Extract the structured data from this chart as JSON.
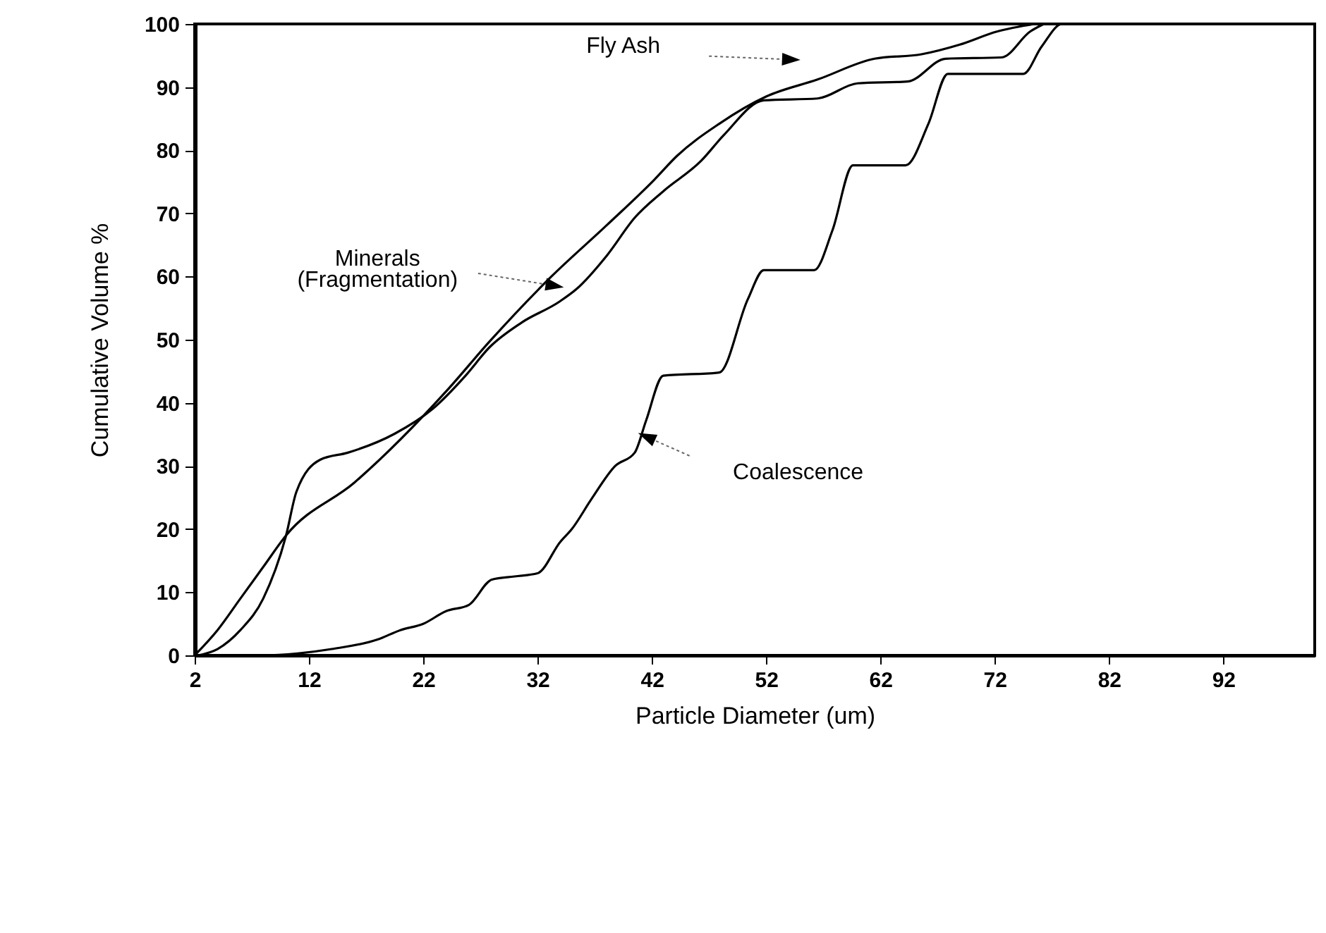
{
  "chart_data": {
    "type": "line",
    "xlabel": "Particle Diameter (um)",
    "ylabel": "Cumulative Volume %",
    "xlim": [
      2,
      100
    ],
    "xticks": [
      2,
      12,
      22,
      32,
      42,
      52,
      62,
      72,
      82,
      92
    ],
    "ylim": [
      0,
      100
    ],
    "yticks": [
      0,
      10,
      20,
      30,
      40,
      50,
      60,
      70,
      80,
      90,
      100
    ],
    "annotations": [
      "Fly Ash",
      "Minerals (Fragmentation)",
      "Coalescence"
    ],
    "grid": false,
    "marker": "none",
    "line_style": "solid",
    "series": [
      {
        "color": "#000000",
        "x": [
          2,
          4,
          6,
          8,
          10,
          16,
          24.1,
          27.8,
          33.1,
          38.1,
          42.2,
          44.2,
          47.9,
          52,
          56.5,
          61.5,
          65.6,
          68.9,
          72.2,
          75.5
        ],
        "values": [
          0,
          4,
          9,
          14,
          19,
          27.4,
          42,
          49.7,
          59.8,
          68.2,
          75.3,
          79.1,
          84.2,
          88.5,
          91.2,
          94.5,
          95.2,
          96.7,
          98.8,
          100
        ]
      },
      {
        "color": "#000000",
        "x": [
          2.3,
          4,
          6,
          8,
          10,
          10.9,
          13,
          15.4,
          19.5,
          22.8,
          25.7,
          27.8,
          30.6,
          33.9,
          35.4,
          38.1,
          40.5,
          43,
          46.3,
          48.3,
          51.8,
          56.5,
          60,
          64.4,
          67.7,
          72.6,
          75.1,
          76.3
        ],
        "values": [
          0,
          1,
          4,
          9,
          19,
          25.9,
          31,
          32.1,
          35.1,
          39,
          44.3,
          48.8,
          52.7,
          56,
          58,
          63.4,
          69.3,
          73.5,
          78.3,
          82.4,
          87.9,
          88.2,
          90.6,
          90.9,
          94.5,
          94.7,
          98.8,
          100
        ]
      },
      {
        "color": "#000000",
        "x": [
          2,
          8,
          11,
          14,
          18,
          20,
          22,
          24,
          26,
          28,
          30,
          32,
          34,
          35,
          36.7,
          38.8,
          40.5,
          41.5,
          43,
          47.9,
          50.4,
          51.8,
          56.2,
          57.8,
          59.6,
          64.2,
          66.2,
          67.9,
          74.5,
          76.1,
          77.9,
          100
        ],
        "values": [
          0,
          0,
          0.3,
          1,
          2.5,
          4,
          5,
          7,
          8,
          12,
          12.5,
          13,
          18,
          20,
          24.7,
          30,
          32.1,
          37.2,
          44.3,
          44.8,
          56.4,
          61,
          61,
          67.3,
          77.6,
          77.6,
          84.2,
          92.1,
          92.1,
          96.4,
          100,
          100
        ]
      }
    ]
  }
}
